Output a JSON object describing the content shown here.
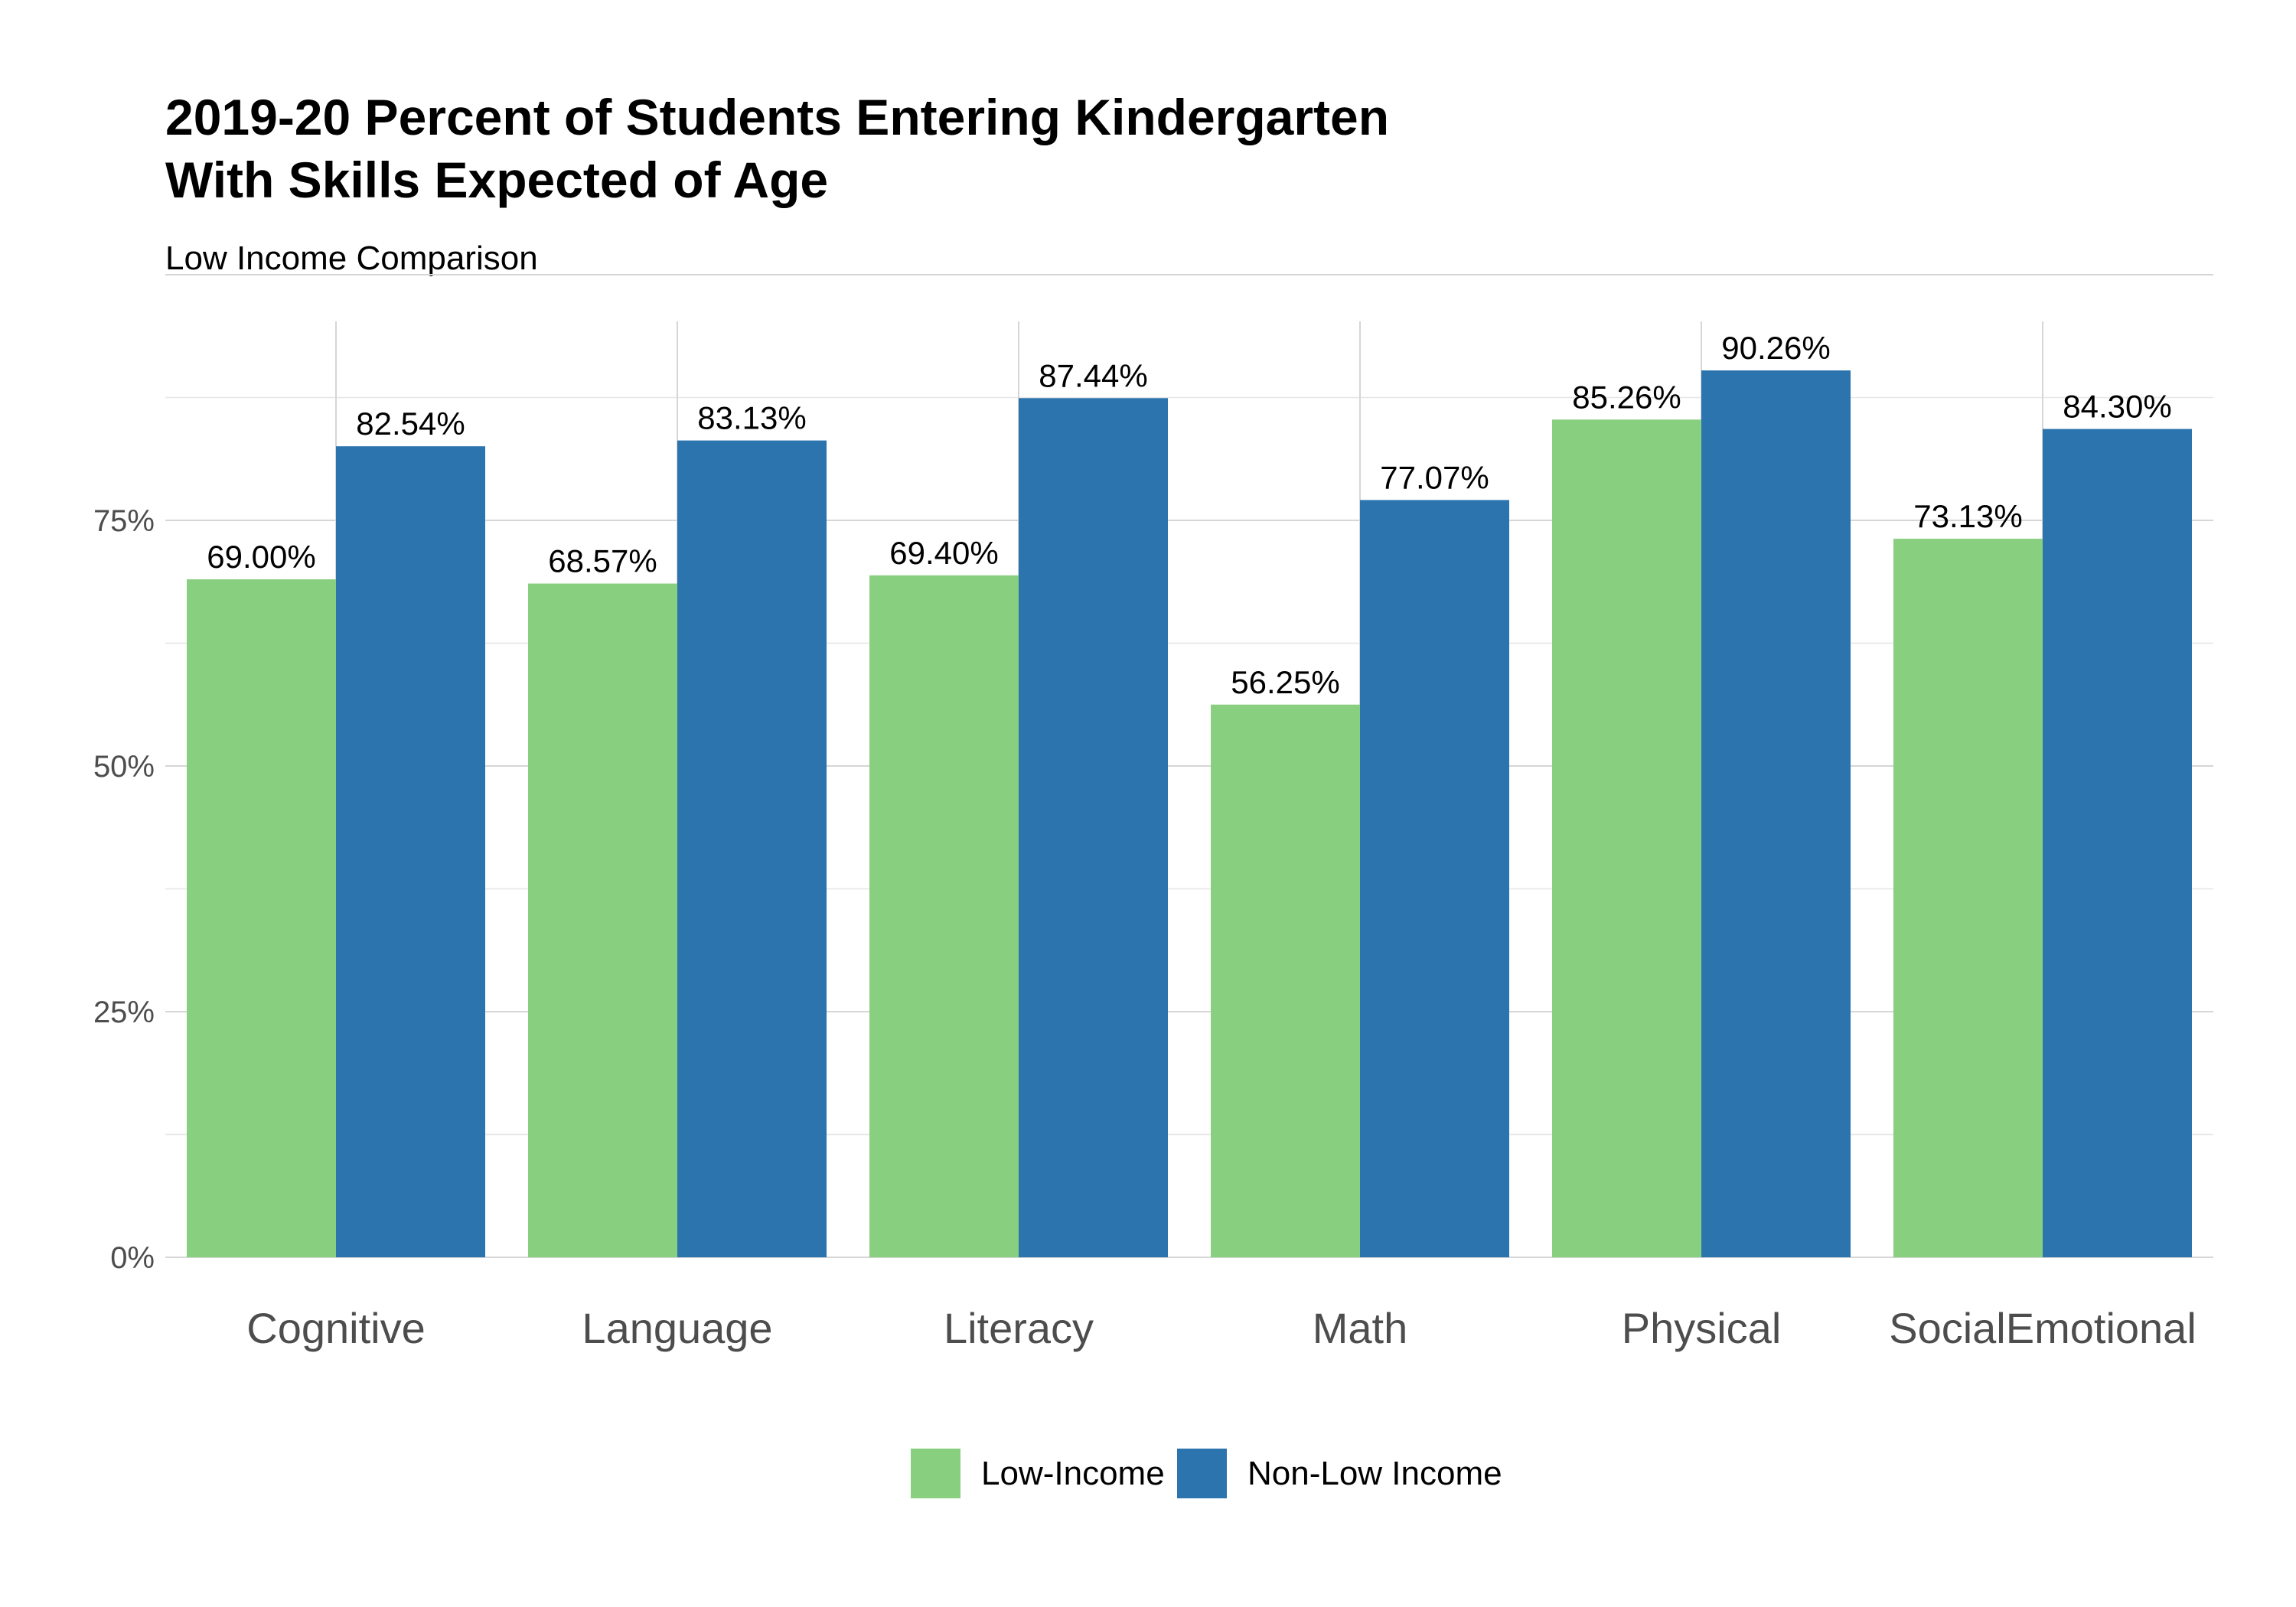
{
  "chart_data": {
    "type": "bar",
    "title_line1": "2019-20 Percent of Students Entering Kindergarten",
    "title_line2": "With Skills Expected of Age",
    "subtitle": "Low Income Comparison",
    "xlabel": "",
    "ylabel": "",
    "categories": [
      "Cognitive",
      "Language",
      "Literacy",
      "Math",
      "Physical",
      "SocialEmotional"
    ],
    "series": [
      {
        "name": "Low-Income",
        "color": "#89cf80",
        "values": [
          69.0,
          68.57,
          69.4,
          56.25,
          85.26,
          73.13
        ],
        "labels": [
          "69.00%",
          "68.57%",
          "69.40%",
          "56.25%",
          "85.26%",
          "73.13%"
        ]
      },
      {
        "name": "Non-Low Income",
        "color": "#2b74ae",
        "values": [
          82.54,
          83.13,
          87.44,
          77.07,
          90.26,
          84.3
        ],
        "labels": [
          "82.54%",
          "83.13%",
          "87.44%",
          "77.07%",
          "90.26%",
          "84.30%"
        ]
      }
    ],
    "ylim": [
      0,
      100
    ],
    "yticks": [
      0,
      25,
      50,
      75
    ],
    "ytick_labels": [
      "0%",
      "25%",
      "50%",
      "75%"
    ],
    "grid": true,
    "legend_position": "bottom"
  }
}
